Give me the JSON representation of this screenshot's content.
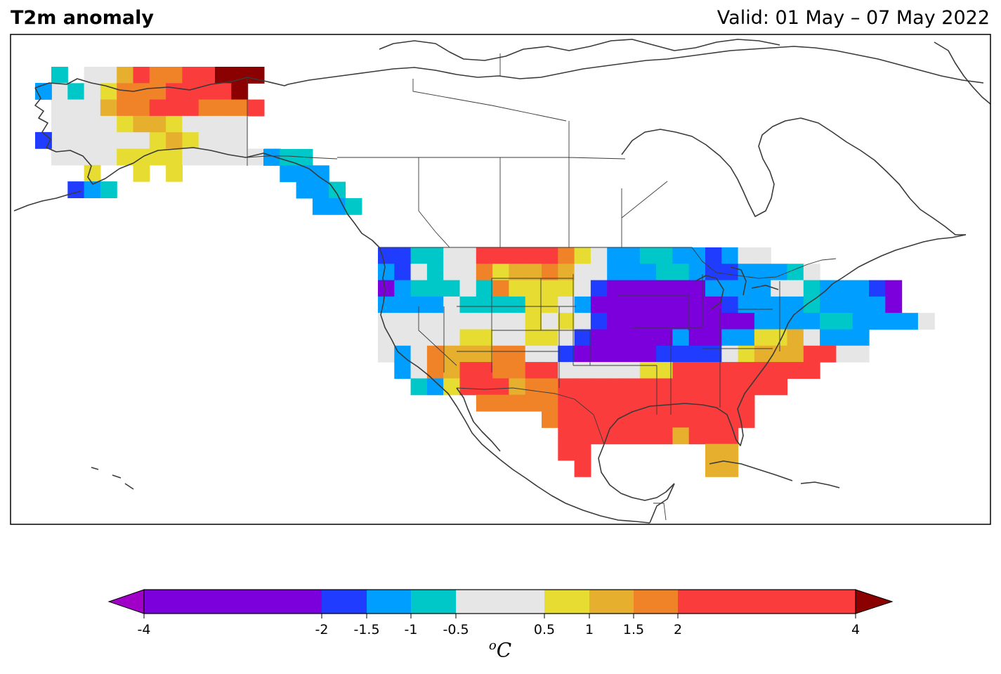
{
  "title": "T2m anomaly",
  "valid": "Valid: 01 May – 07 May 2022",
  "unit_base": "C",
  "unit_super": "o",
  "colorbar": {
    "bins": [
      {
        "lo": -4,
        "hi": -2,
        "color": "#7b00dc"
      },
      {
        "lo": -2,
        "hi": -1.5,
        "color": "#1f3cff"
      },
      {
        "lo": -1.5,
        "hi": -1,
        "color": "#009fff"
      },
      {
        "lo": -1,
        "hi": -0.5,
        "color": "#00c8c8"
      },
      {
        "lo": -0.5,
        "hi": 0.5,
        "color": "#e6e6e6"
      },
      {
        "lo": 0.5,
        "hi": 1,
        "color": "#e6dc32"
      },
      {
        "lo": 1,
        "hi": 1.5,
        "color": "#e6af2d"
      },
      {
        "lo": 1.5,
        "hi": 2,
        "color": "#f08228"
      },
      {
        "lo": 2,
        "hi": 4,
        "color": "#fa3c3c"
      }
    ],
    "under_color": "#a000c8",
    "over_color": "#8b0000",
    "ticks": [
      "-4",
      "-2",
      "-1.5",
      "-1",
      "-0.5",
      "0.5",
      "1",
      "1.5",
      "2",
      "4"
    ],
    "tick_values": [
      -4,
      -2,
      -1.5,
      -1,
      -0.5,
      0.5,
      1,
      1.5,
      2,
      4
    ]
  },
  "palette": {
    "P": "#7b00dc",
    "B": "#1f3cff",
    "L": "#009fff",
    "C": "#00c8c8",
    "G": "#e6e6e6",
    "Y": "#e6dc32",
    "O": "#e6af2d",
    "R": "#f08228",
    "E": "#fa3c3c",
    "D": "#8b0000"
  }
}
